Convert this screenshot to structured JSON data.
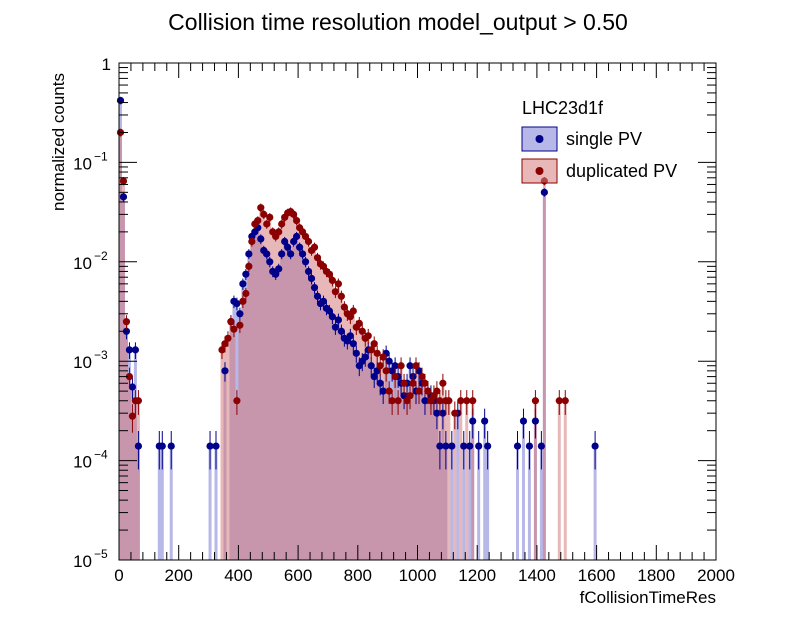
{
  "chart_data": {
    "type": "scatter",
    "title": "Collision time resolution  model_output > 0.50",
    "xlabel": "fCollisionTimeRes",
    "ylabel": "normalized counts",
    "xlim": [
      0,
      2000
    ],
    "ylim": [
      1e-05,
      1
    ],
    "yscale": "log",
    "x_ticks": [
      0,
      200,
      400,
      600,
      800,
      1000,
      1200,
      1400,
      1600,
      1800,
      2000
    ],
    "y_ticks": [
      {
        "value": 1e-05,
        "mantissa": "10",
        "exp": "−5"
      },
      {
        "value": 0.0001,
        "mantissa": "10",
        "exp": "−4"
      },
      {
        "value": 0.001,
        "mantissa": "10",
        "exp": "−3"
      },
      {
        "value": 0.01,
        "mantissa": "10",
        "exp": "−2"
      },
      {
        "value": 0.1,
        "mantissa": "10",
        "exp": "−1"
      },
      {
        "value": 1,
        "mantissa": "1",
        "exp": ""
      }
    ],
    "legend": {
      "title": "LHC23d1f",
      "placement": "top-right",
      "entries": [
        "single PV",
        "duplicated PV"
      ]
    },
    "series": [
      {
        "name": "single PV",
        "color": "#00008b",
        "fill": "#7b7bd6",
        "points": [
          [
            5,
            0.42
          ],
          [
            15,
            0.045
          ],
          [
            25,
            0.002
          ],
          [
            35,
            0.0013
          ],
          [
            45,
            0.00055
          ],
          [
            55,
            0.0013
          ],
          [
            65,
            0.00014
          ],
          [
            135,
            0.00014
          ],
          [
            145,
            0.00014
          ],
          [
            175,
            0.00014
          ],
          [
            305,
            0.00014
          ],
          [
            325,
            0.00014
          ],
          [
            355,
            0.0008
          ],
          [
            375,
            0.0025
          ],
          [
            385,
            0.004
          ],
          [
            395,
            0.0038
          ],
          [
            405,
            0.003
          ],
          [
            415,
            0.006
          ],
          [
            425,
            0.0075
          ],
          [
            435,
            0.012
          ],
          [
            445,
            0.018
          ],
          [
            455,
            0.02
          ],
          [
            465,
            0.022
          ],
          [
            475,
            0.017
          ],
          [
            485,
            0.013
          ],
          [
            495,
            0.012
          ],
          [
            505,
            0.01
          ],
          [
            515,
            0.008
          ],
          [
            525,
            0.0075
          ],
          [
            535,
            0.0085
          ],
          [
            545,
            0.012
          ],
          [
            555,
            0.016
          ],
          [
            565,
            0.014
          ],
          [
            575,
            0.012
          ],
          [
            585,
            0.016
          ],
          [
            595,
            0.018
          ],
          [
            605,
            0.014
          ],
          [
            615,
            0.012
          ],
          [
            625,
            0.01
          ],
          [
            635,
            0.008
          ],
          [
            645,
            0.0068
          ],
          [
            655,
            0.0055
          ],
          [
            665,
            0.0045
          ],
          [
            675,
            0.0038
          ],
          [
            685,
            0.004
          ],
          [
            695,
            0.0034
          ],
          [
            705,
            0.0032
          ],
          [
            715,
            0.0028
          ],
          [
            725,
            0.0022
          ],
          [
            735,
            0.0026
          ],
          [
            745,
            0.002
          ],
          [
            755,
            0.0017
          ],
          [
            765,
            0.0016
          ],
          [
            775,
            0.0018
          ],
          [
            785,
            0.0015
          ],
          [
            795,
            0.0012
          ],
          [
            805,
            0.0009
          ],
          [
            815,
            0.001
          ],
          [
            825,
            0.0011
          ],
          [
            835,
            0.0013
          ],
          [
            845,
            0.0009
          ],
          [
            855,
            0.0007
          ],
          [
            865,
            0.0008
          ],
          [
            875,
            0.0006
          ],
          [
            885,
            0.0005
          ],
          [
            895,
            0.0012
          ],
          [
            905,
            0.001
          ],
          [
            915,
            0.0008
          ],
          [
            925,
            0.0009
          ],
          [
            935,
            0.0007
          ],
          [
            945,
            0.0006
          ],
          [
            955,
            0.00045
          ],
          [
            965,
            0.0006
          ],
          [
            975,
            0.0009
          ],
          [
            985,
            0.0007
          ],
          [
            995,
            0.0005
          ],
          [
            1005,
            0.0008
          ],
          [
            1015,
            0.0006
          ],
          [
            1025,
            0.0004
          ],
          [
            1035,
            0.0005
          ],
          [
            1045,
            0.00045
          ],
          [
            1055,
            0.0004
          ],
          [
            1065,
            0.0003
          ],
          [
            1075,
            0.00014
          ],
          [
            1085,
            0.0003
          ],
          [
            1095,
            0.00014
          ],
          [
            1115,
            0.00014
          ],
          [
            1135,
            0.0003
          ],
          [
            1155,
            0.00014
          ],
          [
            1175,
            0.00014
          ],
          [
            1185,
            0.00025
          ],
          [
            1205,
            0.00014
          ],
          [
            1225,
            0.00025
          ],
          [
            1235,
            0.00014
          ],
          [
            1335,
            0.00014
          ],
          [
            1355,
            0.00025
          ],
          [
            1375,
            0.00014
          ],
          [
            1395,
            0.00025
          ],
          [
            1415,
            0.00014
          ],
          [
            1425,
            0.05
          ],
          [
            1595,
            0.00014
          ]
        ]
      },
      {
        "name": "duplicated PV",
        "color": "#8b0000",
        "fill": "#d67b7b",
        "points": [
          [
            5,
            0.2
          ],
          [
            15,
            0.065
          ],
          [
            25,
            0.0025
          ],
          [
            35,
            0.0007
          ],
          [
            45,
            0.00028
          ],
          [
            55,
            0.0004
          ],
          [
            65,
            0.0004
          ],
          [
            345,
            0.0013
          ],
          [
            355,
            0.0015
          ],
          [
            365,
            0.0017
          ],
          [
            375,
            0.0025
          ],
          [
            385,
            0.0021
          ],
          [
            395,
            0.0004
          ],
          [
            405,
            0.0023
          ],
          [
            415,
            0.004
          ],
          [
            425,
            0.0048
          ],
          [
            435,
            0.009
          ],
          [
            445,
            0.016
          ],
          [
            455,
            0.024
          ],
          [
            465,
            0.026
          ],
          [
            475,
            0.035
          ],
          [
            485,
            0.03
          ],
          [
            495,
            0.024
          ],
          [
            505,
            0.028
          ],
          [
            515,
            0.02
          ],
          [
            525,
            0.018
          ],
          [
            535,
            0.02
          ],
          [
            545,
            0.024
          ],
          [
            555,
            0.028
          ],
          [
            565,
            0.031
          ],
          [
            575,
            0.032
          ],
          [
            585,
            0.03
          ],
          [
            595,
            0.026
          ],
          [
            605,
            0.022
          ],
          [
            615,
            0.02
          ],
          [
            625,
            0.018
          ],
          [
            635,
            0.016
          ],
          [
            645,
            0.013
          ],
          [
            655,
            0.014
          ],
          [
            665,
            0.011
          ],
          [
            675,
            0.0095
          ],
          [
            685,
            0.009
          ],
          [
            695,
            0.008
          ],
          [
            705,
            0.0075
          ],
          [
            715,
            0.0065
          ],
          [
            725,
            0.005
          ],
          [
            735,
            0.006
          ],
          [
            745,
            0.0045
          ],
          [
            755,
            0.0035
          ],
          [
            765,
            0.003
          ],
          [
            775,
            0.0028
          ],
          [
            785,
            0.0032
          ],
          [
            795,
            0.0022
          ],
          [
            805,
            0.0024
          ],
          [
            815,
            0.002
          ],
          [
            825,
            0.0017
          ],
          [
            835,
            0.0018
          ],
          [
            845,
            0.0013
          ],
          [
            855,
            0.0015
          ],
          [
            865,
            0.0012
          ],
          [
            875,
            0.0009
          ],
          [
            885,
            0.0011
          ],
          [
            895,
            0.0008
          ],
          [
            905,
            0.0005
          ],
          [
            915,
            0.0004
          ],
          [
            925,
            0.0007
          ],
          [
            935,
            0.0004
          ],
          [
            945,
            0.0009
          ],
          [
            955,
            0.0006
          ],
          [
            965,
            0.0004
          ],
          [
            975,
            0.00045
          ],
          [
            985,
            0.0006
          ],
          [
            995,
            0.0009
          ],
          [
            1005,
            0.0005
          ],
          [
            1015,
            0.0007
          ],
          [
            1025,
            0.0006
          ],
          [
            1035,
            0.0005
          ],
          [
            1045,
            0.0004
          ],
          [
            1055,
            0.00045
          ],
          [
            1065,
            0.0005
          ],
          [
            1075,
            0.0004
          ],
          [
            1085,
            0.0006
          ],
          [
            1095,
            0.0004
          ],
          [
            1105,
            0.0004
          ],
          [
            1125,
            0.0003
          ],
          [
            1145,
            0.0004
          ],
          [
            1165,
            0.0004
          ],
          [
            1185,
            0.0004
          ],
          [
            1395,
            0.0004
          ],
          [
            1425,
            0.065
          ],
          [
            1475,
            0.0004
          ],
          [
            1495,
            0.0004
          ]
        ]
      }
    ]
  }
}
